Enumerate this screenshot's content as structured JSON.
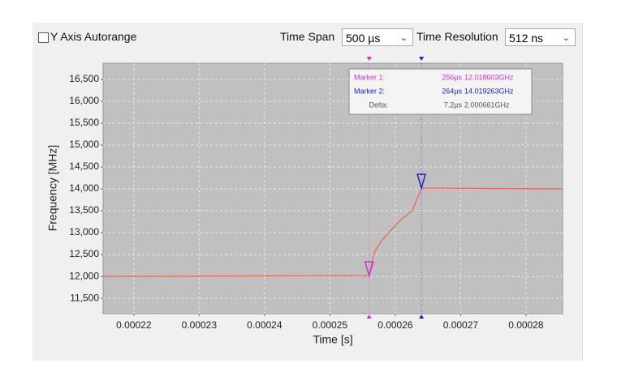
{
  "controls": {
    "autorange_label": "Y Axis Autorange",
    "time_span_label": "Time Span",
    "time_span": "500 µs",
    "time_resolution_label": "Time Resolution",
    "time_resolution": "512 ns"
  },
  "chart_data": {
    "type": "line",
    "x_label": "Time [s]",
    "y_label": "Frequency [MHz]",
    "x": [
      0.0002153,
      0.000256,
      0.0002568,
      0.0002578,
      0.0002593,
      0.0002609,
      0.0002626,
      0.000264,
      0.0002856
    ],
    "series": [
      {
        "color": "#e8685a",
        "values": [
          12000,
          12019,
          12550,
          12800,
          13050,
          13300,
          13500,
          14019,
          14000
        ]
      }
    ],
    "xlim": [
      0.0002153,
      0.0002856
    ],
    "xticks": [
      0.00022,
      0.00023,
      0.00024,
      0.00025,
      0.00026,
      0.00027,
      0.00028
    ],
    "ylim": [
      11150,
      16870
    ],
    "yticks": [
      {
        "value": 11500,
        "label": "11,500"
      },
      {
        "value": 12000,
        "label": "12,000"
      },
      {
        "value": 12500,
        "label": "12,500"
      },
      {
        "value": 13000,
        "label": "13,000"
      },
      {
        "value": 13500,
        "label": "13,500"
      },
      {
        "value": 14000,
        "label": "14,000"
      },
      {
        "value": 14500,
        "label": "14,500"
      },
      {
        "value": 15000,
        "label": "15,000"
      },
      {
        "value": 15500,
        "label": "15,500"
      },
      {
        "value": 16000,
        "label": "16,000"
      },
      {
        "value": 16500,
        "label": "16,500"
      }
    ],
    "grid": true,
    "markers": [
      {
        "name": "Marker 1:",
        "time": "256µs",
        "freq": "12.018603GHz",
        "color": "#cc33cc",
        "x": 0.000256,
        "y": 12018.603
      },
      {
        "name": "Marker 2:",
        "time": "264µs",
        "freq": "14.019263GHz",
        "color": "#2222bb",
        "x": 0.000264,
        "y": 14019.263
      }
    ],
    "delta": {
      "name": "Delta:",
      "time": "7.2µs",
      "freq": "2.000661GHz"
    }
  }
}
